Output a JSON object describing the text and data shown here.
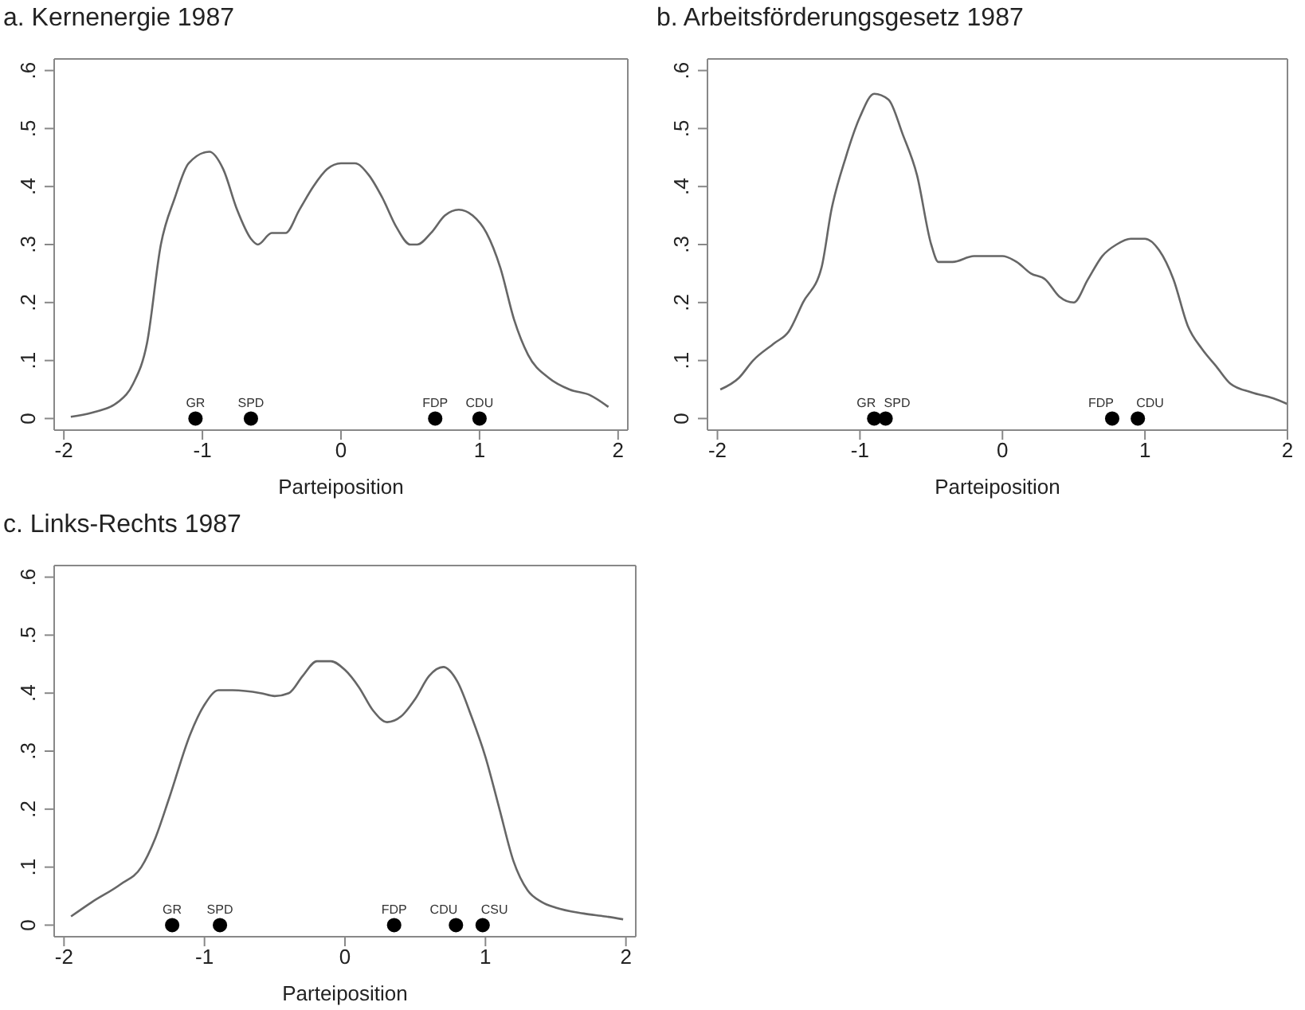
{
  "chart_data": [
    {
      "type": "line",
      "title": "a. Kernenergie 1987",
      "xlabel": "Parteiposition",
      "xlim": [
        -2.07,
        2.07
      ],
      "xticks": [
        -2,
        -1,
        0,
        1,
        2
      ],
      "ylim": [
        -0.02,
        0.62
      ],
      "yticks": [
        {
          "value": 0,
          "label": "0"
        },
        {
          "value": 0.1,
          "label": ".1"
        },
        {
          "value": 0.2,
          "label": ".2"
        },
        {
          "value": 0.3,
          "label": ".3"
        },
        {
          "value": 0.4,
          "label": ".4"
        },
        {
          "value": 0.5,
          "label": ".5"
        },
        {
          "value": 0.6,
          "label": ".6"
        }
      ],
      "series": [
        {
          "type": "line",
          "marker": "none",
          "color": "#666666",
          "x": [
            -1.95,
            -1.8,
            -1.6,
            -1.5,
            -1.4,
            -1.3,
            -1.2,
            -1.1,
            -0.95,
            -0.85,
            -0.75,
            -0.65,
            -0.6,
            -0.5,
            -0.4,
            -0.3,
            -0.2,
            -0.1,
            0,
            0.1,
            0.2,
            0.3,
            0.4,
            0.5,
            0.55,
            0.65,
            0.75,
            0.85,
            0.95,
            1.05,
            1.15,
            1.25,
            1.35,
            1.5,
            1.65,
            1.8,
            1.93
          ],
          "values": [
            0.003,
            0.01,
            0.03,
            0.06,
            0.13,
            0.3,
            0.38,
            0.44,
            0.46,
            0.43,
            0.36,
            0.31,
            0.3,
            0.32,
            0.32,
            0.36,
            0.4,
            0.43,
            0.44,
            0.44,
            0.42,
            0.38,
            0.33,
            0.3,
            0.3,
            0.32,
            0.35,
            0.36,
            0.35,
            0.32,
            0.26,
            0.17,
            0.11,
            0.07,
            0.05,
            0.04,
            0.02
          ]
        },
        {
          "type": "scatter",
          "marker": "circle",
          "color": "#000000",
          "x": [
            -1.05,
            -0.65,
            0.68,
            1.0
          ],
          "values": [
            0,
            0,
            0,
            0
          ]
        }
      ],
      "annotations": [
        {
          "text": "GR",
          "x": -1.05,
          "y": 0
        },
        {
          "text": "SPD",
          "x": -0.65,
          "y": 0
        },
        {
          "text": "FDP",
          "x": 0.68,
          "y": 0
        },
        {
          "text": "CDU",
          "x": 1.0,
          "y": 0
        }
      ]
    },
    {
      "type": "line",
      "title": "b. Arbeitsförderungsgesetz 1987",
      "xlabel": "Parteiposition",
      "xlim": [
        -2.07,
        2.0
      ],
      "xticks": [
        -2,
        -1,
        0,
        1,
        2
      ],
      "ylim": [
        -0.02,
        0.62
      ],
      "yticks": [
        {
          "value": 0,
          "label": "0"
        },
        {
          "value": 0.1,
          "label": ".1"
        },
        {
          "value": 0.2,
          "label": ".2"
        },
        {
          "value": 0.3,
          "label": ".3"
        },
        {
          "value": 0.4,
          "label": ".4"
        },
        {
          "value": 0.5,
          "label": ".5"
        },
        {
          "value": 0.6,
          "label": ".6"
        }
      ],
      "series": [
        {
          "type": "line",
          "marker": "none",
          "color": "#666666",
          "x": [
            -1.98,
            -1.85,
            -1.75,
            -1.6,
            -1.5,
            -1.4,
            -1.27,
            -1.2,
            -1.1,
            -1.0,
            -0.9,
            -0.8,
            -0.7,
            -0.6,
            -0.5,
            -0.45,
            -0.35,
            -0.2,
            0,
            0.1,
            0.2,
            0.3,
            0.4,
            0.5,
            0.6,
            0.7,
            0.8,
            0.9,
            1.0,
            1.1,
            1.2,
            1.3,
            1.4,
            1.5,
            1.6,
            1.75,
            1.9,
            2.0
          ],
          "values": [
            0.05,
            0.07,
            0.1,
            0.13,
            0.15,
            0.2,
            0.26,
            0.36,
            0.45,
            0.52,
            0.56,
            0.55,
            0.49,
            0.42,
            0.3,
            0.27,
            0.27,
            0.28,
            0.28,
            0.27,
            0.25,
            0.24,
            0.21,
            0.2,
            0.24,
            0.28,
            0.3,
            0.31,
            0.31,
            0.29,
            0.24,
            0.16,
            0.12,
            0.09,
            0.06,
            0.045,
            0.035,
            0.025
          ]
        },
        {
          "type": "scatter",
          "marker": "circle",
          "color": "#000000",
          "x": [
            -0.9,
            -0.82,
            0.77,
            0.95
          ],
          "values": [
            0,
            0,
            0,
            0
          ]
        }
      ],
      "annotations": [
        {
          "text": "GR",
          "x": -0.9,
          "y": 0
        },
        {
          "text": "SPD",
          "x": -0.82,
          "y": 0
        },
        {
          "text": "FDP",
          "x": 0.77,
          "y": 0
        },
        {
          "text": "CDU",
          "x": 0.95,
          "y": 0
        }
      ]
    },
    {
      "type": "line",
      "title": "c. Links-Rechts 1987",
      "xlabel": "Parteiposition",
      "xlim": [
        -2.07,
        2.07
      ],
      "xticks": [
        -2,
        -1,
        0,
        1,
        2
      ],
      "ylim": [
        -0.02,
        0.62
      ],
      "yticks": [
        {
          "value": 0,
          "label": "0"
        },
        {
          "value": 0.1,
          "label": ".1"
        },
        {
          "value": 0.2,
          "label": ".2"
        },
        {
          "value": 0.3,
          "label": ".3"
        },
        {
          "value": 0.4,
          "label": ".4"
        },
        {
          "value": 0.5,
          "label": ".5"
        },
        {
          "value": 0.6,
          "label": ".6"
        }
      ],
      "series": [
        {
          "type": "line",
          "marker": "none",
          "color": "#666666",
          "x": [
            -1.95,
            -1.8,
            -1.6,
            -1.45,
            -1.35,
            -1.25,
            -1.1,
            -1.0,
            -0.9,
            -0.8,
            -0.6,
            -0.5,
            -0.4,
            -0.3,
            -0.2,
            -0.1,
            0,
            0.1,
            0.2,
            0.3,
            0.4,
            0.5,
            0.6,
            0.7,
            0.8,
            0.9,
            1.0,
            1.1,
            1.2,
            1.3,
            1.4,
            1.5,
            1.7,
            1.85,
            1.98
          ],
          "values": [
            0.015,
            0.04,
            0.07,
            0.1,
            0.15,
            0.22,
            0.33,
            0.38,
            0.405,
            0.405,
            0.4,
            0.395,
            0.4,
            0.43,
            0.455,
            0.455,
            0.44,
            0.41,
            0.37,
            0.35,
            0.36,
            0.39,
            0.43,
            0.445,
            0.42,
            0.36,
            0.29,
            0.2,
            0.11,
            0.06,
            0.04,
            0.03,
            0.02,
            0.015,
            0.01
          ]
        },
        {
          "type": "scatter",
          "marker": "circle",
          "color": "#000000",
          "x": [
            -1.23,
            -0.89,
            0.35,
            0.79,
            0.98
          ],
          "values": [
            0,
            0,
            0,
            0,
            0
          ]
        }
      ],
      "annotations": [
        {
          "text": "GR",
          "x": -1.23,
          "y": 0
        },
        {
          "text": "SPD",
          "x": -0.89,
          "y": 0
        },
        {
          "text": "FDP",
          "x": 0.35,
          "y": 0
        },
        {
          "text": "CDU",
          "x": 0.79,
          "y": 0
        },
        {
          "text": "CSU",
          "x": 0.98,
          "y": 0
        }
      ]
    }
  ]
}
